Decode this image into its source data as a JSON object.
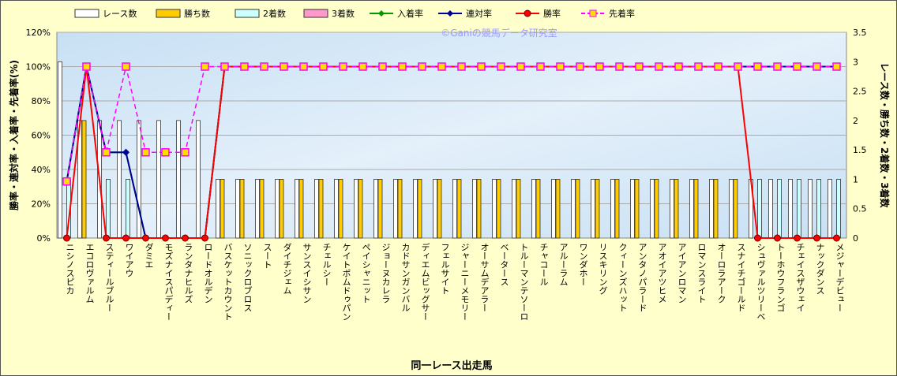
{
  "chart_data": {
    "type": "bar",
    "watermark": "©Ganiの競馬データ研究室",
    "xlabel": "同一レース出走馬",
    "ylabel_left": "勝率・連対率・入着率・先着率(%)",
    "ylabel_right": "レース数・勝ち数・2着数・3着数",
    "ylim_left": [
      0,
      120
    ],
    "yticks_left": [
      "0%",
      "20%",
      "40%",
      "60%",
      "80%",
      "100%",
      "120%"
    ],
    "ylim_right": [
      0,
      3.5
    ],
    "yticks_right": [
      "0",
      "0.5",
      "1",
      "1.5",
      "2",
      "2.5",
      "3",
      "3.5"
    ],
    "grid": true,
    "legend_position": "top",
    "categories": [
      "ニシノスピカ",
      "エコロヴァルム",
      "スティールブルー",
      "ワイアウ",
      "ダミエ",
      "モズナイスパディー",
      "ランタナヒルズ",
      "ロードオルデン",
      "バスケットカウント",
      "ソニックロブロス",
      "スート",
      "ダイチジェム",
      "サンスイシサン",
      "チェルシー",
      "ケイトポムドゥパン",
      "ペイシャニット",
      "ジョーヌカレラ",
      "カドサンガンバル",
      "ディエムビッグサー",
      "フェルサイト",
      "ジャーニーメモリー",
      "オーサムデアラー",
      "ベータース",
      "トルーマンテソーロ",
      "チャコール",
      "アルーラム",
      "ワンダホー",
      "リスキリング",
      "クィーンズハット",
      "アンタノパラード",
      "アオイアツヒメ",
      "アイアンロマン",
      "ロマンスライト",
      "オーロラアーク",
      "スナイチゴールド",
      "シュヴァルツリーベ",
      "トーホウフランゴ",
      "チェイスザウェイ",
      "ナックダンス",
      "メジャーデビュー"
    ],
    "series": [
      {
        "name": "レース数",
        "axis": "right",
        "color": "#ffffff",
        "values": [
          3,
          2,
          2,
          2,
          2,
          2,
          2,
          2,
          1,
          1,
          1,
          1,
          1,
          1,
          1,
          1,
          1,
          1,
          1,
          1,
          1,
          1,
          1,
          1,
          1,
          1,
          1,
          1,
          1,
          1,
          1,
          1,
          1,
          1,
          1,
          1,
          1,
          1,
          1,
          1
        ]
      },
      {
        "name": "勝ち数",
        "axis": "right",
        "color": "#ffcc00",
        "values": [
          0,
          2,
          0,
          0,
          0,
          0,
          0,
          0,
          1,
          1,
          1,
          1,
          1,
          1,
          1,
          1,
          1,
          1,
          1,
          1,
          1,
          1,
          1,
          1,
          1,
          1,
          1,
          1,
          1,
          1,
          1,
          1,
          1,
          1,
          1,
          0,
          0,
          0,
          0,
          0
        ]
      },
      {
        "name": "2着数",
        "axis": "right",
        "color": "#ccffff",
        "values": [
          1,
          0,
          1,
          1,
          0,
          0,
          0,
          0,
          0,
          0,
          0,
          0,
          0,
          0,
          0,
          0,
          0,
          0,
          0,
          0,
          0,
          0,
          0,
          0,
          0,
          0,
          0,
          0,
          0,
          0,
          0,
          0,
          0,
          0,
          0,
          1,
          1,
          1,
          1,
          1
        ]
      },
      {
        "name": "3着数",
        "axis": "right",
        "color": "#ff99cc",
        "values": [
          0,
          0,
          0,
          0,
          0,
          0,
          0,
          0,
          0,
          0,
          0,
          0,
          0,
          0,
          0,
          0,
          0,
          0,
          0,
          0,
          0,
          0,
          0,
          0,
          0,
          0,
          0,
          0,
          0,
          0,
          0,
          0,
          0,
          0,
          0,
          0,
          0,
          0,
          0,
          0
        ]
      },
      {
        "name": "入着率",
        "axis": "left",
        "color": "#009900",
        "marker": "diamond",
        "values": [
          33,
          100,
          50,
          50,
          0,
          0,
          0,
          0,
          100,
          100,
          100,
          100,
          100,
          100,
          100,
          100,
          100,
          100,
          100,
          100,
          100,
          100,
          100,
          100,
          100,
          100,
          100,
          100,
          100,
          100,
          100,
          100,
          100,
          100,
          100,
          100,
          100,
          100,
          100,
          100
        ]
      },
      {
        "name": "連対率",
        "axis": "left",
        "color": "#000099",
        "marker": "diamond",
        "values": [
          33,
          100,
          50,
          50,
          0,
          0,
          0,
          0,
          100,
          100,
          100,
          100,
          100,
          100,
          100,
          100,
          100,
          100,
          100,
          100,
          100,
          100,
          100,
          100,
          100,
          100,
          100,
          100,
          100,
          100,
          100,
          100,
          100,
          100,
          100,
          100,
          100,
          100,
          100,
          100
        ]
      },
      {
        "name": "勝率",
        "axis": "left",
        "color": "#ff0000",
        "marker": "circle",
        "values": [
          0,
          100,
          0,
          0,
          0,
          0,
          0,
          0,
          100,
          100,
          100,
          100,
          100,
          100,
          100,
          100,
          100,
          100,
          100,
          100,
          100,
          100,
          100,
          100,
          100,
          100,
          100,
          100,
          100,
          100,
          100,
          100,
          100,
          100,
          100,
          0,
          0,
          0,
          0,
          0
        ]
      },
      {
        "name": "先着率",
        "axis": "left",
        "color": "#ff00ff",
        "marker": "square",
        "dashed": true,
        "values": [
          33,
          100,
          50,
          100,
          50,
          50,
          50,
          100,
          100,
          100,
          100,
          100,
          100,
          100,
          100,
          100,
          100,
          100,
          100,
          100,
          100,
          100,
          100,
          100,
          100,
          100,
          100,
          100,
          100,
          100,
          100,
          100,
          100,
          100,
          100,
          100,
          100,
          100,
          100,
          100
        ]
      }
    ]
  }
}
